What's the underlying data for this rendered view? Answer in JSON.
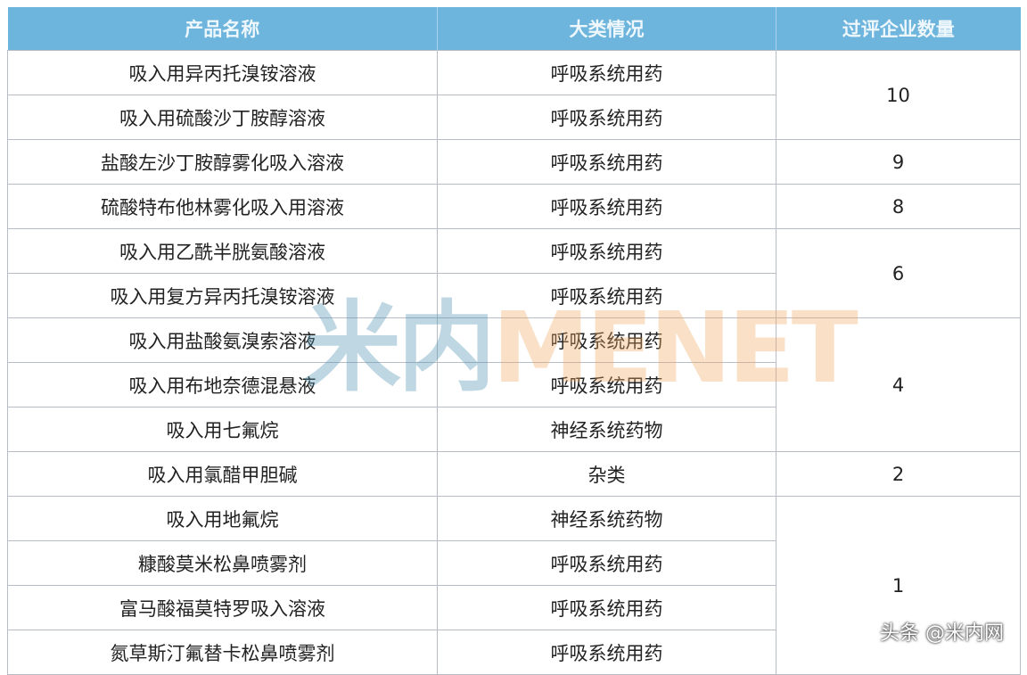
{
  "headers": [
    "产品名称",
    "大类情况",
    "过评企业数量"
  ],
  "rows": [
    {
      "name": "吸入用异丙托溴铵溶液",
      "category": "呼吸系统用药"
    },
    {
      "name": "吸入用硫酸沙丁胺醇溶液",
      "category": "呼吸系统用药"
    },
    {
      "name": "盐酸左沙丁胺醇雾化吸入溶液",
      "category": "呼吸系统用药"
    },
    {
      "name": "硫酸特布他林雾化吸入用溶液",
      "category": "呼吸系统用药"
    },
    {
      "name": "吸入用乙酰半胱氨酸溶液",
      "category": "呼吸系统用药"
    },
    {
      "name": "吸入用复方异丙托溴铵溶液",
      "category": "呼吸系统用药"
    },
    {
      "name": "吸入用盐酸氨溴索溶液",
      "category": "呼吸系统用药"
    },
    {
      "name": "吸入用布地奈德混悬液",
      "category": "呼吸系统用药"
    },
    {
      "name": "吸入用七氟烷",
      "category": "神经系统药物"
    },
    {
      "name": "吸入用氯醋甲胆碱",
      "category": "杂类"
    },
    {
      "name": "吸入用地氟烷",
      "category": "神经系统药物"
    },
    {
      "name": "糠酸莫米松鼻喷雾剂",
      "category": "呼吸系统用药"
    },
    {
      "name": "富马酸福莫特罗吸入溶液",
      "category": "呼吸系统用药"
    },
    {
      "name": "氮草斯汀氟替卡松鼻喷雾剂",
      "category": "呼吸系统用药"
    }
  ],
  "counts": [
    {
      "value": "10",
      "span": 2
    },
    {
      "value": "9",
      "span": 1
    },
    {
      "value": "8",
      "span": 1
    },
    {
      "value": "6",
      "span": 2
    },
    {
      "value": "4",
      "span": 3
    },
    {
      "value": "2",
      "span": 1
    },
    {
      "value": "1",
      "span": 4
    }
  ],
  "watermark": {
    "cn": "米内",
    "en": "MENET"
  },
  "credit": "头条 @米内网",
  "colors": {
    "header_bg": "#6db5dd",
    "header_text": "#eef7fc",
    "border": "#b8bcc4"
  }
}
